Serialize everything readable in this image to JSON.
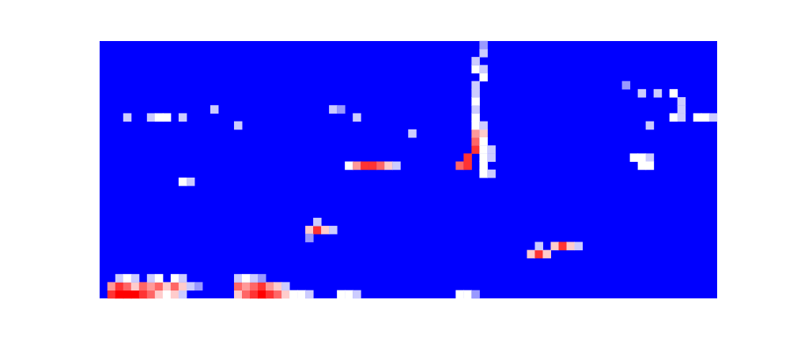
{
  "chart_data": {
    "type": "heatmap",
    "xlim": [
      0,
      78
    ],
    "ylim": [
      0,
      32
    ],
    "tick_labels": false,
    "color_range": [
      0,
      1
    ],
    "cells": [
      [
        1,
        0,
        0.9
      ],
      [
        2,
        0,
        1
      ],
      [
        3,
        0,
        1
      ],
      [
        4,
        0,
        1
      ],
      [
        5,
        0,
        0.9
      ],
      [
        6,
        0,
        0.8
      ],
      [
        7,
        0,
        0.6
      ],
      [
        8,
        0,
        0.5
      ],
      [
        9,
        0,
        0.6
      ],
      [
        10,
        0,
        0.4
      ],
      [
        1,
        1,
        0.7
      ],
      [
        2,
        1,
        0.9
      ],
      [
        3,
        1,
        0.8
      ],
      [
        4,
        1,
        0.6
      ],
      [
        5,
        1,
        0.8
      ],
      [
        6,
        1,
        0.7
      ],
      [
        7,
        1,
        0.8
      ],
      [
        8,
        1,
        0.6
      ],
      [
        9,
        1,
        0.8
      ],
      [
        10,
        1,
        0.6
      ],
      [
        11,
        1,
        0.4
      ],
      [
        12,
        1,
        0.3
      ],
      [
        2,
        2,
        0.4
      ],
      [
        3,
        2,
        0.5
      ],
      [
        4,
        2,
        0.4
      ],
      [
        6,
        2,
        0.4
      ],
      [
        7,
        2,
        0.5
      ],
      [
        9,
        2,
        0.5
      ],
      [
        10,
        2,
        0.4
      ],
      [
        17,
        0,
        0.6
      ],
      [
        18,
        0,
        0.8
      ],
      [
        19,
        0,
        0.9
      ],
      [
        20,
        0,
        1
      ],
      [
        21,
        0,
        0.9
      ],
      [
        22,
        0,
        0.8
      ],
      [
        23,
        0,
        0.6
      ],
      [
        24,
        0,
        0.5
      ],
      [
        25,
        0,
        0.5
      ],
      [
        26,
        0,
        0.4
      ],
      [
        17,
        1,
        0.8
      ],
      [
        18,
        1,
        0.7
      ],
      [
        19,
        1,
        0.8
      ],
      [
        20,
        1,
        0.9
      ],
      [
        21,
        1,
        0.7
      ],
      [
        22,
        1,
        0.6
      ],
      [
        23,
        1,
        0.4
      ],
      [
        17,
        2,
        0.4
      ],
      [
        18,
        2,
        0.5
      ],
      [
        19,
        2,
        0.4
      ],
      [
        20,
        2,
        0.3
      ],
      [
        30,
        0,
        0.5
      ],
      [
        31,
        0,
        0.5
      ],
      [
        32,
        0,
        0.4
      ],
      [
        45,
        0,
        0.5
      ],
      [
        46,
        0,
        0.5
      ],
      [
        47,
        0,
        0.3
      ],
      [
        26,
        8,
        0.6
      ],
      [
        27,
        8,
        0.9
      ],
      [
        28,
        8,
        0.6
      ],
      [
        29,
        8,
        0.4
      ],
      [
        27,
        9,
        0.4
      ],
      [
        26,
        7,
        0.3
      ],
      [
        54,
        5,
        0.6
      ],
      [
        55,
        5,
        0.9
      ],
      [
        56,
        5,
        0.6
      ],
      [
        55,
        6,
        0.4
      ],
      [
        57,
        6,
        0.6
      ],
      [
        58,
        6,
        0.9
      ],
      [
        59,
        6,
        0.6
      ],
      [
        60,
        6,
        0.4
      ],
      [
        31,
        16,
        0.5
      ],
      [
        32,
        16,
        0.7
      ],
      [
        33,
        16,
        0.9
      ],
      [
        34,
        16,
        0.9
      ],
      [
        35,
        16,
        0.8
      ],
      [
        36,
        16,
        0.6
      ],
      [
        37,
        16,
        0.4
      ],
      [
        10,
        14,
        0.5
      ],
      [
        11,
        14,
        0.4
      ],
      [
        45,
        16,
        0.8
      ],
      [
        46,
        16,
        0.9
      ],
      [
        46,
        17,
        0.9
      ],
      [
        47,
        18,
        0.9
      ],
      [
        47,
        19,
        0.8
      ],
      [
        47,
        20,
        0.7
      ],
      [
        48,
        20,
        0.6
      ],
      [
        48,
        16,
        0.5
      ],
      [
        48,
        17,
        0.5
      ],
      [
        48,
        18,
        0.5
      ],
      [
        48,
        19,
        0.5
      ],
      [
        49,
        17,
        0.4
      ],
      [
        49,
        18,
        0.4
      ],
      [
        48,
        15,
        0.5
      ],
      [
        49,
        15,
        0.4
      ],
      [
        47,
        21,
        0.5
      ],
      [
        48,
        21,
        0.4
      ],
      [
        47,
        22,
        0.5
      ],
      [
        47,
        23,
        0.4
      ],
      [
        47,
        24,
        0.5
      ],
      [
        47,
        25,
        0.4
      ],
      [
        47,
        26,
        0.4
      ],
      [
        48,
        27,
        0.5
      ],
      [
        47,
        28,
        0.5
      ],
      [
        48,
        28,
        0.4
      ],
      [
        47,
        29,
        0.4
      ],
      [
        48,
        30,
        0.4
      ],
      [
        48,
        31,
        0.3
      ],
      [
        3,
        22,
        0.4
      ],
      [
        6,
        22,
        0.4
      ],
      [
        7,
        22,
        0.5
      ],
      [
        8,
        22,
        0.5
      ],
      [
        10,
        22,
        0.4
      ],
      [
        14,
        23,
        0.4
      ],
      [
        17,
        21,
        0.4
      ],
      [
        29,
        23,
        0.4
      ],
      [
        30,
        23,
        0.3
      ],
      [
        32,
        22,
        0.4
      ],
      [
        39,
        20,
        0.4
      ],
      [
        66,
        26,
        0.3
      ],
      [
        68,
        25,
        0.4
      ],
      [
        70,
        25,
        0.4
      ],
      [
        72,
        25,
        0.5
      ],
      [
        73,
        24,
        0.4
      ],
      [
        73,
        23,
        0.4
      ],
      [
        72,
        22,
        0.5
      ],
      [
        73,
        22,
        0.4
      ],
      [
        75,
        22,
        0.5
      ],
      [
        76,
        22,
        0.5
      ],
      [
        77,
        22,
        0.4
      ],
      [
        69,
        21,
        0.4
      ],
      [
        67,
        17,
        0.5
      ],
      [
        68,
        17,
        0.5
      ],
      [
        69,
        17,
        0.4
      ],
      [
        68,
        16,
        0.5
      ],
      [
        69,
        16,
        0.5
      ]
    ]
  }
}
